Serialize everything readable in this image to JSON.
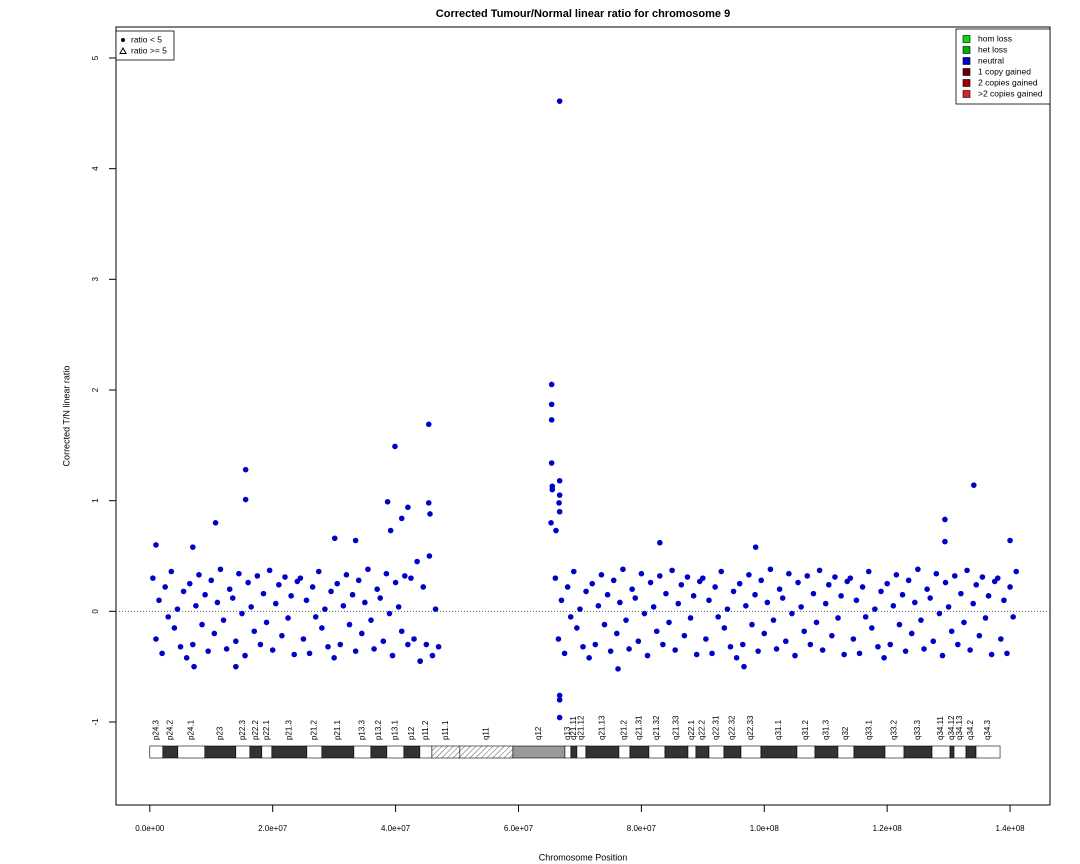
{
  "chart_data": {
    "type": "scatter",
    "title": "Corrected Tumour/Normal linear ratio for chromosome  9",
    "x_label": "Chromosome Position",
    "y_label": "Corrected T/N linear ratio",
    "xlim": [
      -5500000.0,
      146500000.0
    ],
    "ylim": [
      -1.75,
      5.28
    ],
    "xticks": [
      {
        "value": 0,
        "label": "0.0e+00"
      },
      {
        "value": 20000000.0,
        "label": "2.0e+07"
      },
      {
        "value": 40000000.0,
        "label": "4.0e+07"
      },
      {
        "value": 60000000.0,
        "label": "6.0e+07"
      },
      {
        "value": 80000000.0,
        "label": "8.0e+07"
      },
      {
        "value": 100000000.0,
        "label": "1.0e+08"
      },
      {
        "value": 120000000.0,
        "label": "1.2e+08"
      },
      {
        "value": 140000000.0,
        "label": "1.4e+08"
      }
    ],
    "yticks": [
      -1,
      0,
      1,
      2,
      3,
      4,
      5
    ],
    "hline": 0,
    "shape_legend": [
      {
        "label": "ratio < 5",
        "marker": "dot"
      },
      {
        "label": "ratio >= 5",
        "marker": "triangle"
      }
    ],
    "color_legend": [
      {
        "label": "hom loss",
        "color": "#00e000"
      },
      {
        "label": "het loss",
        "color": "#00b000"
      },
      {
        "label": "neutral",
        "color": "#0000c8"
      },
      {
        "label": "1 copy gained",
        "color": "#6a0000"
      },
      {
        "label": "2 copies gained",
        "color": "#a00000"
      },
      {
        "label": ">2 copies gained",
        "color": "#e02020"
      }
    ],
    "x": [
      500000.0,
      1000000.0,
      1500000.0,
      2000000.0,
      2500000.0,
      3000000.0,
      3500000.0,
      4000000.0,
      4500000.0,
      5000000.0,
      5500000.0,
      6000000.0,
      6500000.0,
      7000000.0,
      7500000.0,
      8000000.0,
      8500000.0,
      9000000.0,
      9500000.0,
      10000000.0,
      10500000.0,
      11000000.0,
      11500000.0,
      12000000.0,
      12500000.0,
      13000000.0,
      13500000.0,
      14000000.0,
      14500000.0,
      15000000.0,
      15500000.0,
      16000000.0,
      16500000.0,
      17000000.0,
      17500000.0,
      18000000.0,
      18500000.0,
      19000000.0,
      19500000.0,
      20000000.0,
      20500000.0,
      21000000.0,
      21500000.0,
      22000000.0,
      22500000.0,
      23000000.0,
      23500000.0,
      24000000.0,
      24500000.0,
      25000000.0,
      25500000.0,
      26000000.0,
      26500000.0,
      27000000.0,
      27500000.0,
      28000000.0,
      28500000.0,
      29000000.0,
      29500000.0,
      30000000.0,
      30500000.0,
      31000000.0,
      31500000.0,
      32000000.0,
      32500000.0,
      33000000.0,
      33500000.0,
      34000000.0,
      34500000.0,
      35000000.0,
      35500000.0,
      36000000.0,
      36500000.0,
      37000000.0,
      37500000.0,
      38000000.0,
      38500000.0,
      39000000.0,
      39500000.0,
      40000000.0,
      40500000.0,
      41000000.0,
      41500000.0,
      42000000.0,
      42500000.0,
      43000000.0,
      43500000.0,
      44000000.0,
      44500000.0,
      45000000.0,
      45500000.0,
      46000000.0,
      46500000.0,
      47000000.0,
      66000000.0,
      66500000.0,
      67000000.0,
      67500000.0,
      68000000.0,
      68500000.0,
      69000000.0,
      69500000.0,
      70000000.0,
      70500000.0,
      71000000.0,
      71500000.0,
      72000000.0,
      72500000.0,
      73000000.0,
      73500000.0,
      74000000.0,
      74500000.0,
      75000000.0,
      75500000.0,
      76000000.0,
      76500000.0,
      77000000.0,
      77500000.0,
      78000000.0,
      78500000.0,
      79000000.0,
      79500000.0,
      80000000.0,
      80500000.0,
      81000000.0,
      81500000.0,
      82000000.0,
      82500000.0,
      83000000.0,
      83500000.0,
      84000000.0,
      84500000.0,
      85000000.0,
      85500000.0,
      86000000.0,
      86500000.0,
      87000000.0,
      87500000.0,
      88000000.0,
      88500000.0,
      89000000.0,
      89500000.0,
      90000000.0,
      90500000.0,
      91000000.0,
      91500000.0,
      92000000.0,
      92500000.0,
      93000000.0,
      93500000.0,
      94000000.0,
      94500000.0,
      95000000.0,
      95500000.0,
      96000000.0,
      96500000.0,
      97000000.0,
      97500000.0,
      98000000.0,
      98500000.0,
      99000000.0,
      99500000.0,
      100000000.0,
      100500000.0,
      101000000.0,
      101500000.0,
      102000000.0,
      102500000.0,
      103000000.0,
      103500000.0,
      104000000.0,
      104500000.0,
      105000000.0,
      105500000.0,
      106000000.0,
      106500000.0,
      107000000.0,
      107500000.0,
      108000000.0,
      108500000.0,
      109000000.0,
      109500000.0,
      110000000.0,
      110500000.0,
      111000000.0,
      111500000.0,
      112000000.0,
      112500000.0,
      113000000.0,
      113500000.0,
      114000000.0,
      114500000.0,
      115000000.0,
      115500000.0,
      116000000.0,
      116500000.0,
      117000000.0,
      117500000.0,
      118000000.0,
      118500000.0,
      119000000.0,
      119500000.0,
      120000000.0,
      120500000.0,
      121000000.0,
      121500000.0,
      122000000.0,
      122500000.0,
      123000000.0,
      123500000.0,
      124000000.0,
      124500000.0,
      125000000.0,
      125500000.0,
      126000000.0,
      126500000.0,
      127000000.0,
      127500000.0,
      128000000.0,
      128500000.0,
      129000000.0,
      129500000.0,
      130000000.0,
      130500000.0,
      131000000.0,
      131500000.0,
      132000000.0,
      132500000.0,
      133000000.0,
      133500000.0,
      134000000.0,
      134500000.0,
      135000000.0,
      135500000.0,
      136000000.0,
      136500000.0,
      137000000.0,
      137500000.0,
      138000000.0,
      138500000.0,
      139000000.0,
      139500000.0,
      140000000.0,
      140500000.0,
      141000000.0,
      1000000.0,
      7000000.0,
      10700000.0,
      15600000.0,
      15600000.0,
      30100000.0,
      33500000.0,
      38700000.0,
      39200000.0,
      39900000.0,
      41000000.0,
      42000000.0,
      45400000.0,
      45400000.0,
      45600000.0,
      7200000.0,
      14000000.0,
      44000000.0,
      65400000.0,
      65400000.0,
      65400000.0,
      65400000.0,
      65500000.0,
      65500000.0,
      66700000.0,
      66700000.0,
      66600000.0,
      66700000.0,
      65300000.0,
      66100000.0,
      66700000.0,
      66700000.0,
      66700000.0,
      66700000.0,
      76200000.0,
      83000000.0,
      96700000.0,
      98600000.0,
      129400000.0,
      129400000.0,
      134100000.0,
      140000000.0
    ],
    "series": [
      {
        "color": "#0000c8",
        "values": [
          0.3,
          -0.25,
          0.1,
          -0.38,
          0.22,
          -0.05,
          0.36,
          -0.15,
          0.02,
          -0.32,
          0.18,
          -0.42,
          0.25,
          -0.3,
          0.05,
          0.33,
          -0.12,
          0.15,
          -0.36,
          0.28,
          -0.2,
          0.08,
          0.38,
          -0.08,
          -0.34,
          0.2,
          0.12,
          -0.27,
          0.34,
          -0.02,
          -0.4,
          0.26,
          0.04,
          -0.18,
          0.32,
          -0.3,
          0.16,
          -0.1,
          0.37,
          -0.35,
          0.07,
          0.24,
          -0.22,
          0.31,
          -0.06,
          0.14,
          -0.39,
          0.27,
          0.3,
          -0.25,
          0.1,
          -0.38,
          0.22,
          -0.05,
          0.36,
          -0.15,
          0.02,
          -0.32,
          0.18,
          -0.42,
          0.25,
          -0.3,
          0.05,
          0.33,
          -0.12,
          0.15,
          -0.36,
          0.28,
          -0.2,
          0.08,
          0.38,
          -0.08,
          -0.34,
          0.2,
          0.12,
          -0.27,
          0.34,
          -0.02,
          -0.4,
          0.26,
          0.04,
          -0.18,
          0.32,
          -0.3,
          0.3,
          -0.25,
          0.45,
          -0.45,
          0.22,
          -0.3,
          0.5,
          -0.4,
          0.02,
          -0.32,
          0.3,
          -0.25,
          0.1,
          -0.38,
          0.22,
          -0.05,
          0.36,
          -0.15,
          0.02,
          -0.32,
          0.18,
          -0.42,
          0.25,
          -0.3,
          0.05,
          0.33,
          -0.12,
          0.15,
          -0.36,
          0.28,
          -0.2,
          0.08,
          0.38,
          -0.08,
          -0.34,
          0.2,
          0.12,
          -0.27,
          0.34,
          -0.02,
          -0.4,
          0.26,
          0.04,
          -0.18,
          0.32,
          -0.3,
          0.16,
          -0.1,
          0.37,
          -0.35,
          0.07,
          0.24,
          -0.22,
          0.31,
          -0.06,
          0.14,
          -0.39,
          0.27,
          0.3,
          -0.25,
          0.1,
          -0.38,
          0.22,
          -0.05,
          0.36,
          -0.15,
          0.02,
          -0.32,
          0.18,
          -0.42,
          0.25,
          -0.3,
          0.05,
          0.33,
          -0.12,
          0.15,
          -0.36,
          0.28,
          -0.2,
          0.08,
          0.38,
          -0.08,
          -0.34,
          0.2,
          0.12,
          -0.27,
          0.34,
          -0.02,
          -0.4,
          0.26,
          0.04,
          -0.18,
          0.32,
          -0.3,
          0.16,
          -0.1,
          0.37,
          -0.35,
          0.07,
          0.24,
          -0.22,
          0.31,
          -0.06,
          0.14,
          -0.39,
          0.27,
          0.3,
          -0.25,
          0.1,
          -0.38,
          0.22,
          -0.05,
          0.36,
          -0.15,
          0.02,
          -0.32,
          0.18,
          -0.42,
          0.25,
          -0.3,
          0.05,
          0.33,
          -0.12,
          0.15,
          -0.36,
          0.28,
          -0.2,
          0.08,
          0.38,
          -0.08,
          -0.34,
          0.2,
          0.12,
          -0.27,
          0.34,
          -0.02,
          -0.4,
          0.26,
          0.04,
          -0.18,
          0.32,
          -0.3,
          0.16,
          -0.1,
          0.37,
          -0.35,
          0.07,
          0.24,
          -0.22,
          0.31,
          -0.06,
          0.14,
          -0.39,
          0.27,
          0.3,
          -0.25,
          0.1,
          -0.38,
          0.22,
          -0.05,
          0.36,
          0.6,
          0.58,
          0.8,
          1.28,
          1.01,
          0.66,
          0.64,
          0.99,
          0.73,
          1.49,
          0.84,
          0.94,
          1.69,
          0.98,
          0.88,
          -0.5,
          -0.5,
          -0.45,
          2.05,
          1.87,
          1.73,
          1.34,
          1.13,
          1.1,
          1.18,
          1.05,
          0.98,
          0.9,
          0.8,
          0.73,
          4.61,
          -0.76,
          -0.8,
          -0.96,
          -0.52,
          0.62,
          -0.5,
          0.58,
          0.83,
          0.63,
          1.14,
          0.64
        ]
      }
    ],
    "ideogram": [
      {
        "name": "p24.3",
        "start": 0,
        "end": 2120000.0,
        "stain": "gneg"
      },
      {
        "name": "p24.2",
        "start": 2120000.0,
        "end": 4560000.0,
        "stain": "gpos"
      },
      {
        "name": "p24.1",
        "start": 4560000.0,
        "end": 8950000.0,
        "stain": "gneg"
      },
      {
        "name": "p23",
        "start": 8950000.0,
        "end": 14000000.0,
        "stain": "gpos"
      },
      {
        "name": "p22.3",
        "start": 14000000.0,
        "end": 16280000.0,
        "stain": "gneg"
      },
      {
        "name": "p22.2",
        "start": 16280000.0,
        "end": 18230000.0,
        "stain": "gpos"
      },
      {
        "name": "p22.1",
        "start": 18230000.0,
        "end": 19860000.0,
        "stain": "gneg"
      },
      {
        "name": "p21.3",
        "start": 19860000.0,
        "end": 25560000.0,
        "stain": "gpos"
      },
      {
        "name": "p21.2",
        "start": 25560000.0,
        "end": 28000000.0,
        "stain": "gneg"
      },
      {
        "name": "p21.1",
        "start": 28000000.0,
        "end": 33210000.0,
        "stain": "gpos"
      },
      {
        "name": "p13.3",
        "start": 33210000.0,
        "end": 35980000.0,
        "stain": "gneg"
      },
      {
        "name": "p13.2",
        "start": 35980000.0,
        "end": 38580000.0,
        "stain": "gpos"
      },
      {
        "name": "p13.1",
        "start": 38580000.0,
        "end": 41350000.0,
        "stain": "gneg"
      },
      {
        "name": "p12",
        "start": 41350000.0,
        "end": 43950000.0,
        "stain": "gpos"
      },
      {
        "name": "p11.2",
        "start": 43950000.0,
        "end": 45910000.0,
        "stain": "gneg"
      },
      {
        "name": "p11.1",
        "start": 45910000.0,
        "end": 50460000.0,
        "stain": "acen"
      },
      {
        "name": "q11",
        "start": 50460000.0,
        "end": 59090000.0,
        "stain": "acen"
      },
      {
        "name": "q12",
        "start": 59090000.0,
        "end": 67560000.0,
        "stain": "gvar"
      },
      {
        "name": "q13",
        "start": 67560000.0,
        "end": 68530000.0,
        "stain": "gneg"
      },
      {
        "name": "q21.11",
        "start": 68530000.0,
        "end": 69510000.0,
        "stain": "gpos"
      },
      {
        "name": "q21.12",
        "start": 69510000.0,
        "end": 70980000.0,
        "stain": "gneg"
      },
      {
        "name": "q21.13",
        "start": 70980000.0,
        "end": 76350000.0,
        "stain": "gpos"
      },
      {
        "name": "q21.2",
        "start": 76350000.0,
        "end": 78140000.0,
        "stain": "gneg"
      },
      {
        "name": "q21.31",
        "start": 78140000.0,
        "end": 81230000.0,
        "stain": "gpos"
      },
      {
        "name": "q21.32",
        "start": 81230000.0,
        "end": 83840000.0,
        "stain": "gneg"
      },
      {
        "name": "q21.33",
        "start": 83840000.0,
        "end": 87580000.0,
        "stain": "gpos"
      },
      {
        "name": "q22.1",
        "start": 87580000.0,
        "end": 88880000.0,
        "stain": "gneg"
      },
      {
        "name": "q22.2",
        "start": 88880000.0,
        "end": 91000000.0,
        "stain": "gpos"
      },
      {
        "name": "q22.31",
        "start": 91000000.0,
        "end": 93440000.0,
        "stain": "gneg"
      },
      {
        "name": "q22.32",
        "start": 93440000.0,
        "end": 96210000.0,
        "stain": "gpos"
      },
      {
        "name": "q22.33",
        "start": 96210000.0,
        "end": 99460000.0,
        "stain": "gneg"
      },
      {
        "name": "q31.1",
        "start": 99460000.0,
        "end": 105320000.0,
        "stain": "gpos"
      },
      {
        "name": "q31.2",
        "start": 105320000.0,
        "end": 108250000.0,
        "stain": "gneg"
      },
      {
        "name": "q31.3",
        "start": 108250000.0,
        "end": 111990000.0,
        "stain": "gpos"
      },
      {
        "name": "q32",
        "start": 111990000.0,
        "end": 114600000.0,
        "stain": "gneg"
      },
      {
        "name": "q33.1",
        "start": 114600000.0,
        "end": 119650000.0,
        "stain": "gpos"
      },
      {
        "name": "q33.2",
        "start": 119650000.0,
        "end": 122740000.0,
        "stain": "gneg"
      },
      {
        "name": "q33.3",
        "start": 122740000.0,
        "end": 127300000.0,
        "stain": "gpos"
      },
      {
        "name": "q34.11",
        "start": 127300000.0,
        "end": 130230000.0,
        "stain": "gneg"
      },
      {
        "name": "q34.12",
        "start": 130230000.0,
        "end": 130880000.0,
        "stain": "gpos"
      },
      {
        "name": "q34.13",
        "start": 130880000.0,
        "end": 132830000.0,
        "stain": "gneg"
      },
      {
        "name": "q34.2",
        "start": 132830000.0,
        "end": 134460000.0,
        "stain": "gpos"
      },
      {
        "name": "q34.3",
        "start": 134460000.0,
        "end": 138370000.0,
        "stain": "gneg"
      }
    ]
  }
}
